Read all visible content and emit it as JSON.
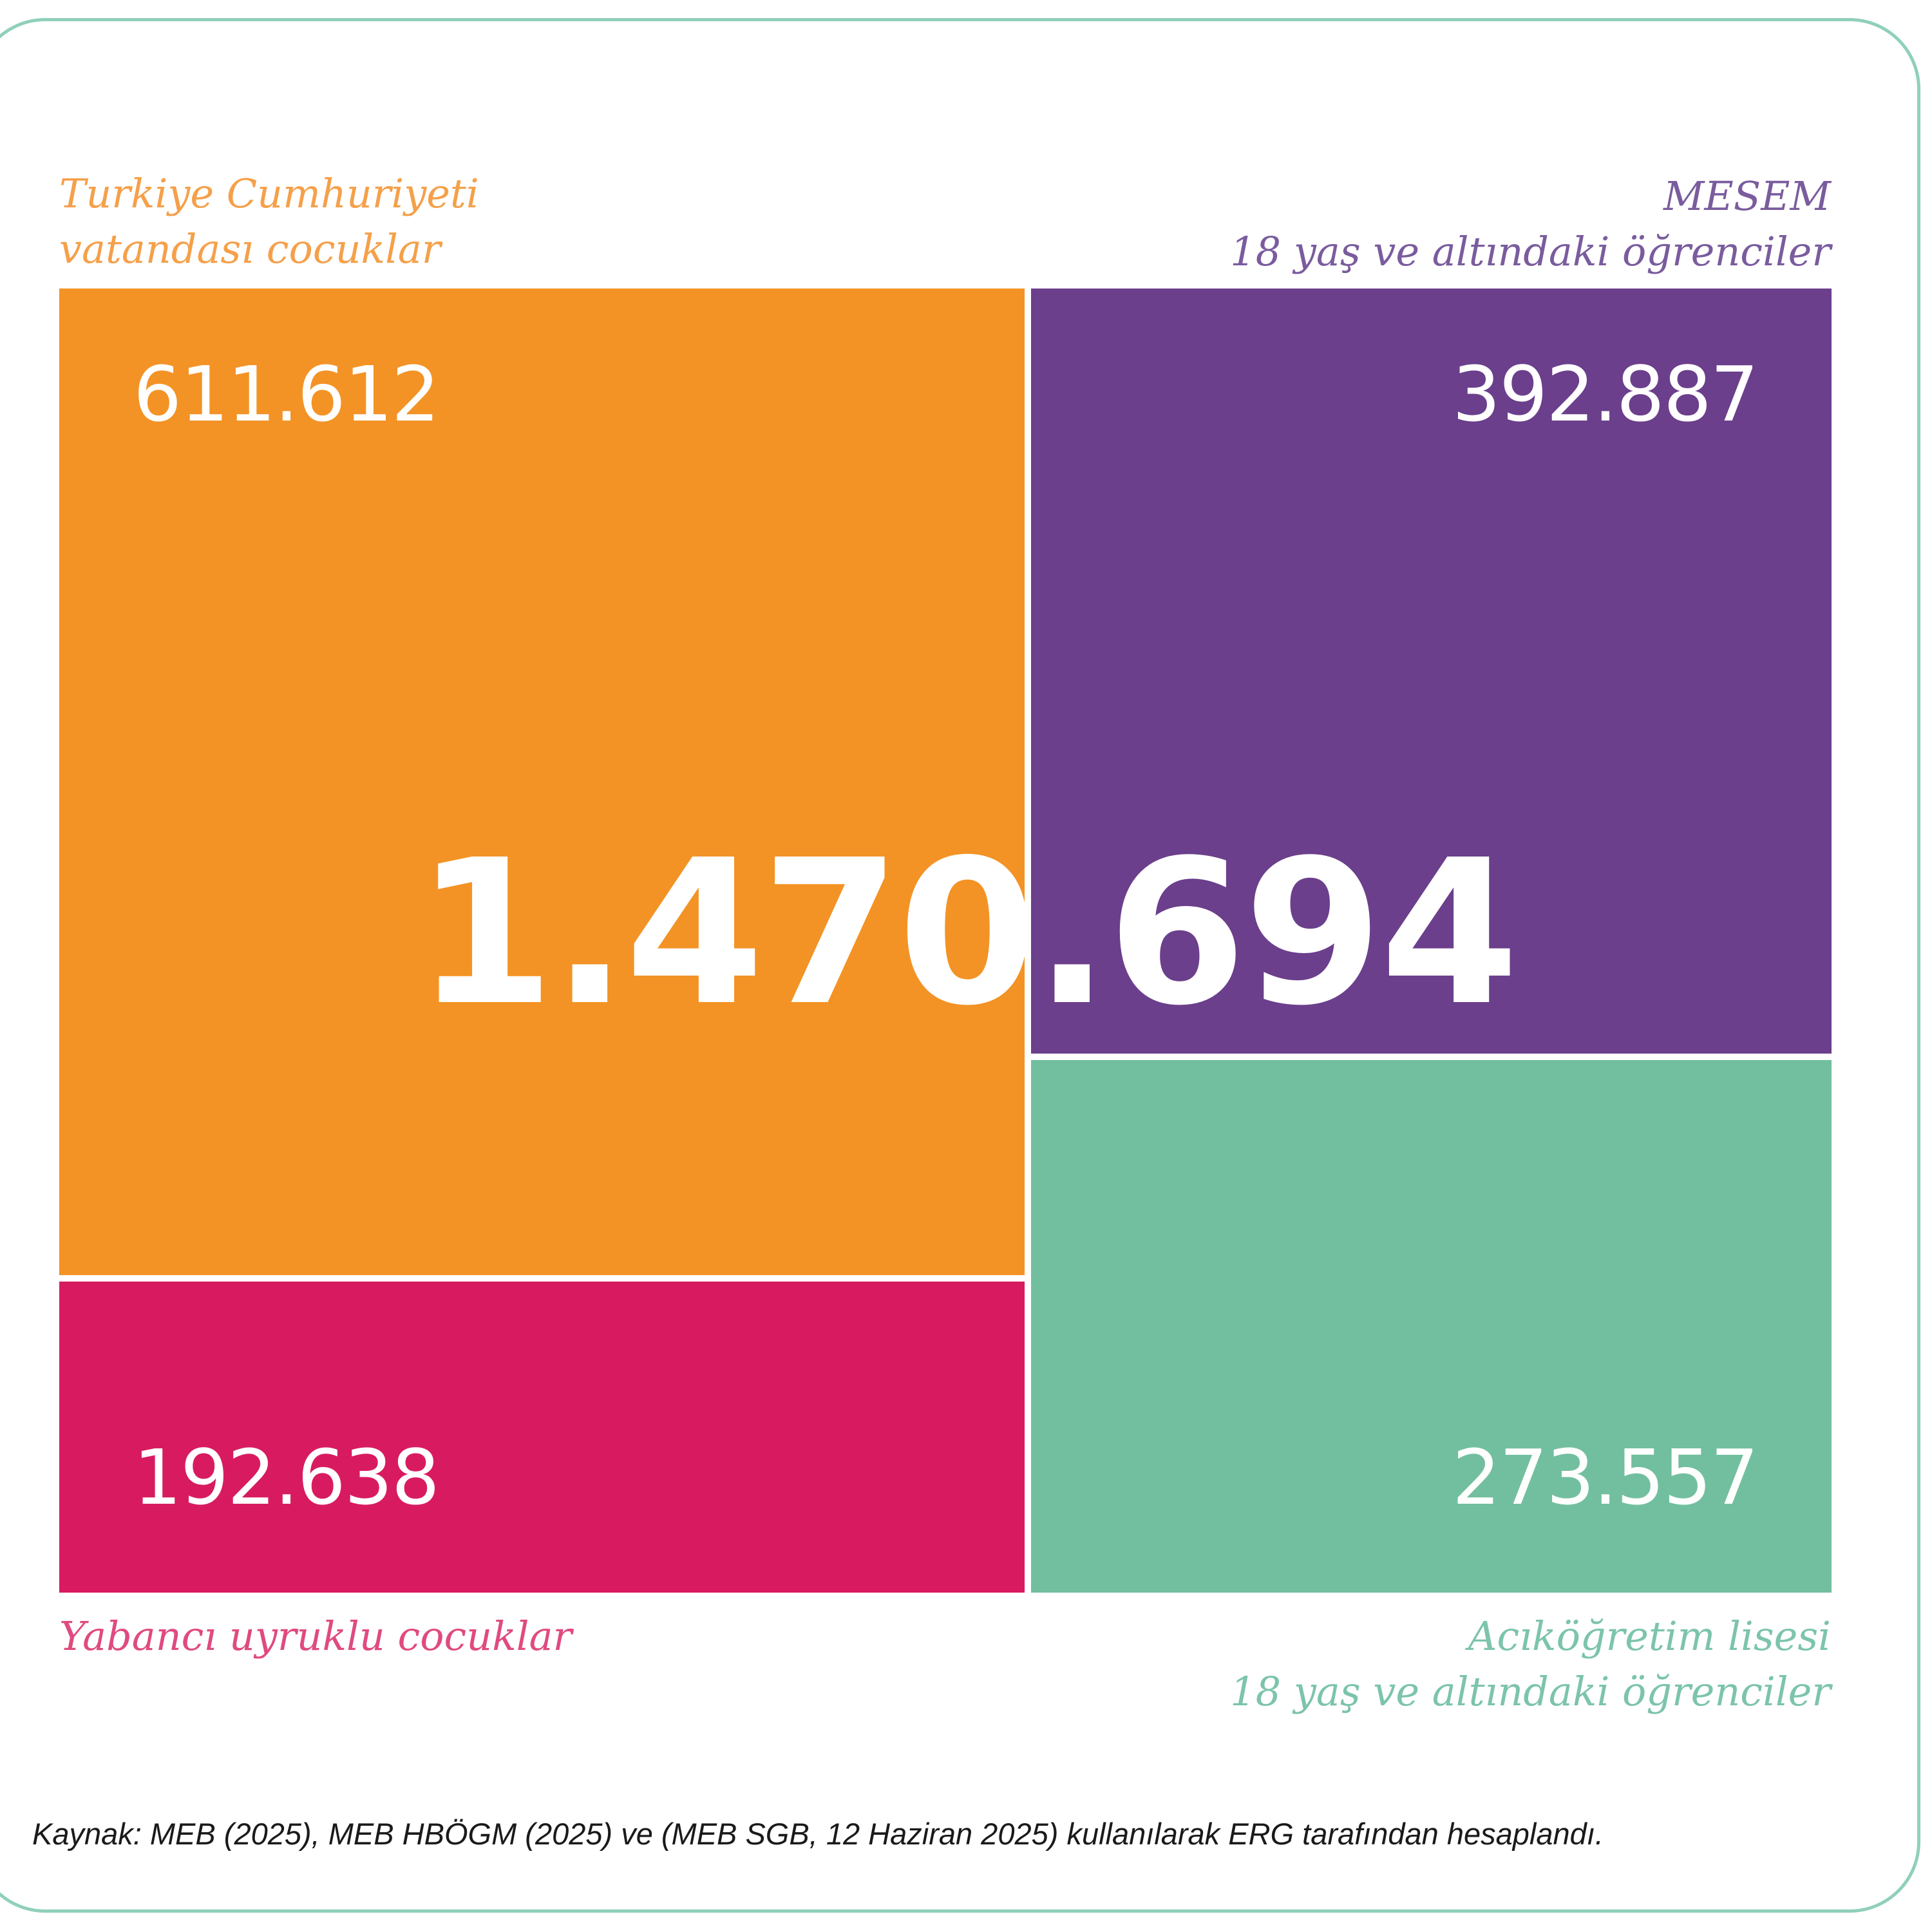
{
  "chart_data": {
    "type": "treemap",
    "total": 1470694,
    "total_label": "1.470.694",
    "cells": [
      {
        "id": "tr-citizen",
        "value": 611612,
        "value_label": "611.612",
        "label_lines": [
          "Turkiye Cumhuriyeti",
          "vatandası cocuklar"
        ],
        "color": "#f39325"
      },
      {
        "id": "foreign",
        "value": 192638,
        "value_label": "192.638",
        "label_lines": [
          "Yabancı uyruklu cocuklar"
        ],
        "color": "#d81b60"
      },
      {
        "id": "mesem",
        "value": 392887,
        "value_label": "392.887",
        "label_lines": [
          "MESEM",
          "18 yaş ve altındaki öğrenciler"
        ],
        "color": "#6b3f8c"
      },
      {
        "id": "open-high-school",
        "value": 273557,
        "value_label": "273.557",
        "label_lines": [
          "Acıköğretim lisesi",
          "18 yaş ve altındaki öğrenciler"
        ],
        "color": "#72bf9f"
      }
    ]
  },
  "source": "Kaynak: MEB (2025), MEB HBÖGM (2025) ve (MEB SGB, 12 Haziran 2025) kullanılarak ERG tarafından hesaplandı."
}
